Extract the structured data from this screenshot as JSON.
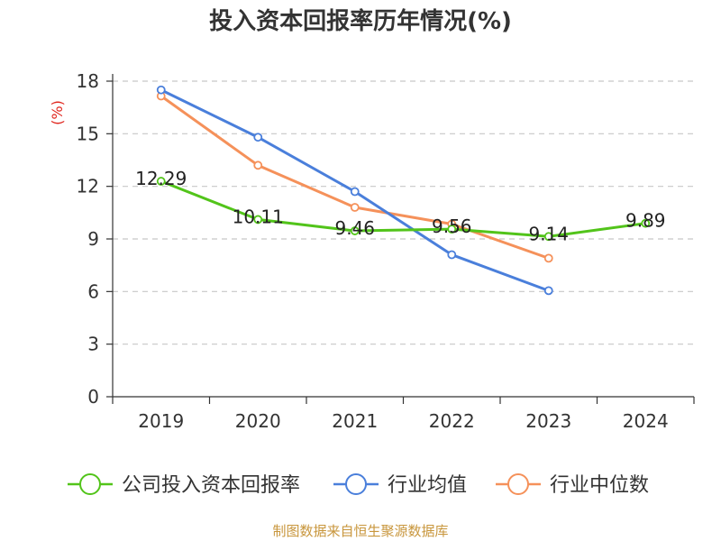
{
  "chart_data": {
    "type": "line",
    "title": "投入资本回报率历年情况(%)",
    "ylabel": "(%)",
    "xlabel": "",
    "categories": [
      "2019",
      "2020",
      "2021",
      "2022",
      "2023",
      "2024"
    ],
    "ylim": [
      0,
      18
    ],
    "yticks": [
      0,
      3,
      6,
      9,
      12,
      15,
      18
    ],
    "grid": true,
    "legend_position": "bottom",
    "series": [
      {
        "name": "公司投入资本回报率",
        "color": "#52c41a",
        "values": [
          12.29,
          10.11,
          9.46,
          9.56,
          9.14,
          9.89
        ],
        "labels": [
          "12.29",
          "10.11",
          "9.46",
          "9.56",
          "9.14",
          "9.89"
        ]
      },
      {
        "name": "行业均值",
        "color": "#4a7fdb",
        "values": [
          17.5,
          14.8,
          11.7,
          8.1,
          6.05,
          null
        ]
      },
      {
        "name": "行业中位数",
        "color": "#f5915a",
        "values": [
          17.15,
          13.2,
          10.8,
          9.85,
          7.9,
          null
        ]
      }
    ],
    "source": "制图数据来自恒生聚源数据库"
  }
}
